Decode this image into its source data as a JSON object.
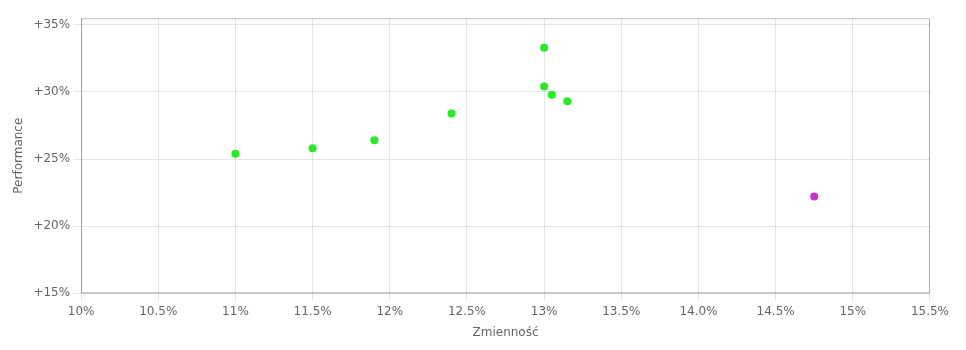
{
  "chart_data": {
    "type": "scatter",
    "xlabel": "Zmienność",
    "ylabel": "Performance",
    "xlim": [
      0.1,
      0.155
    ],
    "ylim": [
      0.15,
      0.355
    ],
    "xticks": [
      {
        "value": 0.1,
        "label": "10%"
      },
      {
        "value": 0.105,
        "label": "10.5%"
      },
      {
        "value": 0.11,
        "label": "11%"
      },
      {
        "value": 0.115,
        "label": "11.5%"
      },
      {
        "value": 0.12,
        "label": "12%"
      },
      {
        "value": 0.125,
        "label": "12.5%"
      },
      {
        "value": 0.13,
        "label": "13%"
      },
      {
        "value": 0.135,
        "label": "13.5%"
      },
      {
        "value": 0.14,
        "label": "14.0%"
      },
      {
        "value": 0.145,
        "label": "14.5%"
      },
      {
        "value": 0.15,
        "label": "15%"
      },
      {
        "value": 0.155,
        "label": "15.5%"
      }
    ],
    "yticks": [
      {
        "value": 0.15,
        "label": "+15%"
      },
      {
        "value": 0.2,
        "label": "+20%"
      },
      {
        "value": 0.25,
        "label": "+25%"
      },
      {
        "value": 0.3,
        "label": "+30%"
      },
      {
        "value": 0.35,
        "label": "+35%"
      }
    ],
    "grid": true,
    "series": [
      {
        "color": "#22ee22",
        "x": [
          0.11,
          0.115,
          0.119,
          0.124,
          0.13,
          0.13,
          0.1305,
          0.1315
        ],
        "values": [
          0.254,
          0.258,
          0.264,
          0.284,
          0.333,
          0.304,
          0.298,
          0.293
        ]
      },
      {
        "color": "#cc33cc",
        "x": [
          0.1475
        ],
        "values": [
          0.222
        ]
      }
    ]
  }
}
